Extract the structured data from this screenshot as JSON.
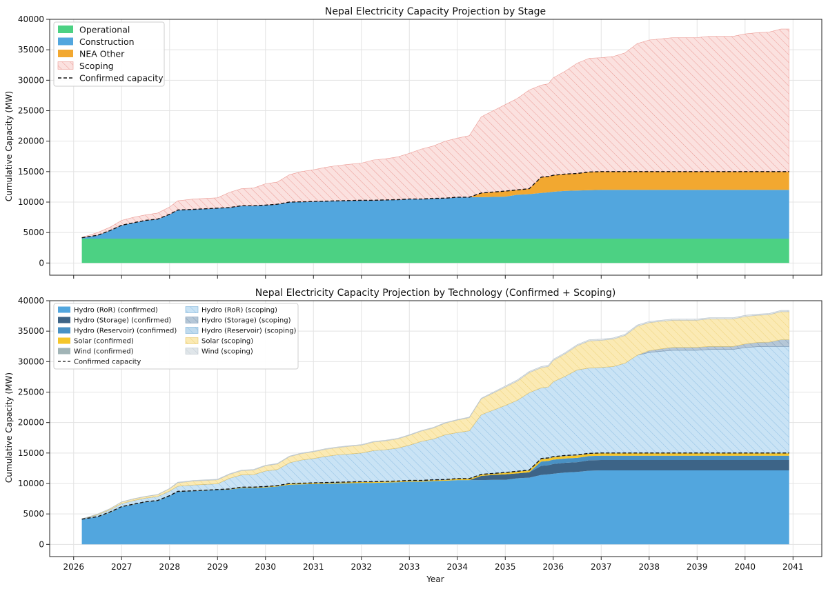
{
  "chart_data": [
    {
      "type": "area",
      "title": "Nepal Electricity Capacity Projection by Stage",
      "xlabel": "",
      "ylabel": "Cumulative Capacity (MW)",
      "xlim": [
        2025.5,
        2041.6
      ],
      "ylim": [
        -2000,
        40000
      ],
      "yticks": [
        0,
        5000,
        10000,
        15000,
        20000,
        25000,
        30000,
        35000,
        40000
      ],
      "grid": true,
      "legend_position": "top-left",
      "stacked": true,
      "x": [
        2026.17,
        2026.5,
        2026.75,
        2027.0,
        2027.25,
        2027.5,
        2027.75,
        2028.0,
        2028.17,
        2028.5,
        2028.75,
        2029.0,
        2029.25,
        2029.5,
        2029.75,
        2030.0,
        2030.25,
        2030.5,
        2030.75,
        2031.0,
        2031.25,
        2031.5,
        2031.75,
        2032.0,
        2032.25,
        2032.5,
        2032.75,
        2033.0,
        2033.25,
        2033.5,
        2033.75,
        2034.0,
        2034.25,
        2034.5,
        2034.75,
        2035.0,
        2035.25,
        2035.5,
        2035.75,
        2035.9,
        2036.0,
        2036.25,
        2036.5,
        2036.75,
        2037.0,
        2037.25,
        2037.5,
        2037.75,
        2038.0,
        2038.25,
        2038.5,
        2038.75,
        2039.0,
        2039.25,
        2039.5,
        2039.75,
        2040.0,
        2040.25,
        2040.5,
        2040.75,
        2040.92
      ],
      "series": [
        {
          "name": "Operational",
          "values": [
            4000,
            4000,
            4000,
            4000,
            4000,
            4000,
            4000,
            4000,
            4000,
            4000,
            4000,
            4000,
            4000,
            4000,
            4000,
            4000,
            4000,
            4000,
            4000,
            4000,
            4000,
            4000,
            4000,
            4000,
            4000,
            4000,
            4000,
            4000,
            4000,
            4000,
            4000,
            4000,
            4000,
            4000,
            4000,
            4000,
            4000,
            4000,
            4000,
            4000,
            4000,
            4000,
            4000,
            4000,
            4000,
            4000,
            4000,
            4000,
            4000,
            4000,
            4000,
            4000,
            4000,
            4000,
            4000,
            4000,
            4000,
            4000,
            4000,
            4000,
            4000
          ]
        },
        {
          "name": "Construction",
          "values": [
            150,
            550,
            1300,
            2200,
            2600,
            3000,
            3200,
            4000,
            4700,
            4800,
            4900,
            5000,
            5100,
            5400,
            5400,
            5500,
            5650,
            6000,
            6050,
            6100,
            6150,
            6200,
            6250,
            6300,
            6300,
            6350,
            6400,
            6500,
            6500,
            6600,
            6650,
            6800,
            6800,
            6800,
            6850,
            6900,
            7200,
            7300,
            7500,
            7600,
            7700,
            7850,
            7900,
            7950,
            8000,
            8000,
            8000,
            8000,
            8000,
            8000,
            8000,
            8000,
            8000,
            8000,
            8000,
            8000,
            8000,
            8000,
            8000,
            8000,
            8000
          ]
        },
        {
          "name": "NEA Other",
          "values": [
            0,
            0,
            0,
            0,
            0,
            0,
            0,
            0,
            0,
            0,
            0,
            0,
            0,
            0,
            0,
            0,
            0,
            0,
            0,
            0,
            0,
            0,
            0,
            0,
            0,
            0,
            0,
            0,
            0,
            0,
            0,
            0,
            0,
            700,
            800,
            900,
            800,
            900,
            2600,
            2600,
            2700,
            2750,
            2800,
            3000,
            3000,
            3000,
            3000,
            3000,
            3000,
            3000,
            3000,
            3000,
            3000,
            3000,
            3000,
            3000,
            3000,
            3000,
            3000,
            3000,
            3000
          ]
        },
        {
          "name": "Scoping",
          "values": [
            50,
            450,
            550,
            800,
            900,
            900,
            1000,
            1200,
            1500,
            1700,
            1700,
            1700,
            2500,
            2800,
            2900,
            3500,
            3650,
            4500,
            4950,
            5200,
            5550,
            5800,
            5950,
            6100,
            6600,
            6750,
            7000,
            7500,
            8200,
            8600,
            9350,
            9700,
            10100,
            12500,
            13350,
            14200,
            15000,
            16200,
            15100,
            15200,
            16000,
            16900,
            18100,
            18650,
            18700,
            18900,
            19500,
            21000,
            21600,
            21800,
            22000,
            22000,
            22000,
            22200,
            22200,
            22200,
            22600,
            22800,
            22900,
            23400,
            23400
          ]
        }
      ],
      "reference_line": {
        "name": "Confirmed capacity",
        "style": "dashed",
        "color": "#111111"
      },
      "colors": {
        "Operational": "#4cd183",
        "Construction": "#52a6de",
        "NEA Other": "#f2a830",
        "Scoping": "#fbe1df",
        "Scoping_hatch": "#eb9a94"
      }
    },
    {
      "type": "area",
      "title": "Nepal Electricity Capacity Projection by Technology (Confirmed + Scoping)",
      "xlabel": "Year",
      "ylabel": "Cumulative Capacity (MW)",
      "xlim": [
        2025.5,
        2041.6
      ],
      "ylim": [
        -2000,
        40000
      ],
      "yticks": [
        0,
        5000,
        10000,
        15000,
        20000,
        25000,
        30000,
        35000,
        40000
      ],
      "xticks": [
        "2026",
        "2027",
        "2028",
        "2029",
        "2030",
        "2031",
        "2032",
        "2033",
        "2034",
        "2035",
        "2036",
        "2037",
        "2038",
        "2039",
        "2040",
        "2041"
      ],
      "grid": true,
      "legend_position": "top-left",
      "stacked": true,
      "series": [
        {
          "name": "Hydro (RoR) (confirmed)",
          "values": [
            4100,
            4500,
            5200,
            6150,
            6550,
            6950,
            7150,
            7950,
            8650,
            8750,
            8850,
            8950,
            9000,
            9250,
            9250,
            9350,
            9500,
            9800,
            9850,
            9900,
            9950,
            10000,
            10050,
            10100,
            10100,
            10150,
            10200,
            10300,
            10300,
            10400,
            10450,
            10550,
            10550,
            10550,
            10600,
            10600,
            10850,
            10950,
            11400,
            11500,
            11600,
            11800,
            11900,
            12100,
            12150,
            12150,
            12150,
            12150,
            12150,
            12150,
            12150,
            12150,
            12150,
            12150,
            12150,
            12150,
            12150,
            12150,
            12150,
            12150,
            12150
          ]
        },
        {
          "name": "Hydro (Storage) (confirmed)",
          "values": [
            0,
            0,
            0,
            0,
            0,
            0,
            0,
            0,
            0,
            0,
            0,
            0,
            0,
            0,
            0,
            0,
            0,
            0,
            0,
            0,
            0,
            0,
            0,
            0,
            0,
            0,
            0,
            0,
            0,
            0,
            0,
            0,
            0,
            700,
            800,
            900,
            800,
            900,
            1500,
            1500,
            1600,
            1600,
            1600,
            1700,
            1700,
            1700,
            1700,
            1700,
            1700,
            1700,
            1700,
            1700,
            1700,
            1700,
            1700,
            1700,
            1700,
            1700,
            1700,
            1700,
            1700
          ]
        },
        {
          "name": "Hydro (Reservoir) (confirmed)",
          "values": [
            0,
            0,
            0,
            0,
            0,
            0,
            0,
            0,
            0,
            0,
            0,
            0,
            0,
            0,
            0,
            0,
            0,
            0,
            0,
            0,
            0,
            0,
            0,
            0,
            0,
            0,
            0,
            0,
            0,
            0,
            0,
            0,
            0,
            0,
            0,
            0,
            0,
            0,
            700,
            700,
            700,
            700,
            700,
            700,
            700,
            700,
            700,
            700,
            700,
            700,
            700,
            700,
            700,
            700,
            700,
            700,
            700,
            700,
            700,
            700,
            700
          ]
        },
        {
          "name": "Solar (confirmed)",
          "values": [
            0,
            0,
            50,
            50,
            50,
            50,
            50,
            50,
            50,
            50,
            50,
            50,
            50,
            100,
            100,
            100,
            100,
            150,
            150,
            150,
            150,
            150,
            150,
            150,
            150,
            150,
            150,
            150,
            150,
            150,
            150,
            200,
            200,
            200,
            200,
            250,
            300,
            300,
            400,
            400,
            400,
            400,
            400,
            400,
            400,
            400,
            400,
            400,
            400,
            400,
            400,
            400,
            400,
            400,
            400,
            400,
            400,
            400,
            400,
            400,
            400
          ]
        },
        {
          "name": "Wind (confirmed)",
          "values": [
            50,
            50,
            50,
            0,
            0,
            0,
            0,
            0,
            0,
            0,
            0,
            0,
            50,
            50,
            50,
            50,
            50,
            50,
            50,
            50,
            50,
            50,
            50,
            50,
            50,
            50,
            50,
            50,
            50,
            50,
            50,
            50,
            50,
            50,
            50,
            50,
            50,
            50,
            100,
            100,
            100,
            100,
            100,
            50,
            50,
            50,
            50,
            50,
            50,
            50,
            50,
            50,
            50,
            50,
            50,
            50,
            50,
            50,
            50,
            50,
            50
          ]
        },
        {
          "name": "Hydro (RoR) (scoping)",
          "values": [
            0,
            300,
            350,
            500,
            600,
            600,
            650,
            750,
            850,
            950,
            950,
            950,
            1750,
            2000,
            2050,
            2550,
            2650,
            3400,
            3800,
            4000,
            4300,
            4500,
            4600,
            4700,
            5100,
            5200,
            5400,
            5800,
            6400,
            6700,
            7350,
            7550,
            7850,
            9800,
            10400,
            11000,
            11650,
            12700,
            11600,
            11650,
            12300,
            13000,
            13950,
            14000,
            14050,
            14200,
            14750,
            16050,
            16500,
            16700,
            16850,
            16850,
            16850,
            17000,
            17000,
            17000,
            17300,
            17450,
            17500,
            17500,
            17500
          ]
        },
        {
          "name": "Hydro (Storage) (scoping)",
          "values": [
            0,
            0,
            0,
            0,
            0,
            0,
            0,
            0,
            0,
            0,
            0,
            0,
            0,
            0,
            0,
            0,
            0,
            0,
            0,
            0,
            0,
            0,
            0,
            0,
            0,
            0,
            0,
            0,
            0,
            0,
            0,
            0,
            0,
            0,
            0,
            0,
            0,
            0,
            0,
            0,
            0,
            0,
            0,
            0,
            0,
            0,
            0,
            0,
            300,
            400,
            500,
            500,
            500,
            500,
            500,
            500,
            600,
            700,
            700,
            1100,
            1100
          ]
        },
        {
          "name": "Hydro (Reservoir) (scoping)",
          "values": [
            0,
            0,
            0,
            0,
            0,
            0,
            0,
            0,
            0,
            0,
            0,
            0,
            0,
            0,
            0,
            0,
            0,
            0,
            0,
            0,
            0,
            0,
            0,
            0,
            0,
            0,
            0,
            0,
            0,
            0,
            0,
            0,
            0,
            0,
            0,
            0,
            0,
            0,
            0,
            0,
            0,
            0,
            0,
            0,
            0,
            0,
            0,
            0,
            0,
            0,
            0,
            0,
            0,
            0,
            0,
            0,
            0,
            0,
            0,
            0,
            0
          ]
        },
        {
          "name": "Solar (scoping)",
          "values": [
            0,
            100,
            150,
            250,
            250,
            250,
            300,
            400,
            550,
            650,
            650,
            650,
            650,
            700,
            750,
            850,
            900,
            1000,
            1050,
            1100,
            1150,
            1200,
            1250,
            1300,
            1400,
            1450,
            1500,
            1600,
            1700,
            1800,
            1900,
            2050,
            2150,
            2600,
            2800,
            3000,
            3150,
            3300,
            3300,
            3350,
            3500,
            3700,
            3950,
            4450,
            4450,
            4500,
            4550,
            4750,
            4600,
            4500,
            4450,
            4450,
            4450,
            4500,
            4500,
            4500,
            4500,
            4450,
            4500,
            4600,
            4600
          ]
        },
        {
          "name": "Wind (scoping)",
          "values": [
            50,
            50,
            50,
            50,
            50,
            50,
            50,
            50,
            100,
            100,
            100,
            100,
            100,
            100,
            100,
            100,
            100,
            100,
            100,
            100,
            100,
            100,
            100,
            100,
            100,
            100,
            100,
            100,
            100,
            100,
            100,
            100,
            100,
            100,
            150,
            200,
            200,
            200,
            200,
            200,
            200,
            200,
            200,
            200,
            200,
            200,
            200,
            200,
            200,
            200,
            200,
            200,
            200,
            200,
            200,
            200,
            200,
            200,
            200,
            200,
            200
          ]
        }
      ],
      "reference_line": {
        "name": "Confirmed capacity",
        "style": "dashed",
        "color": "#111111"
      },
      "colors": {
        "Hydro (RoR) (confirmed)": "#52a6de",
        "Hydro (Storage) (confirmed)": "#3d6487",
        "Hydro (Reservoir) (confirmed)": "#4991c4",
        "Solar (confirmed)": "#f5c62a",
        "Wind (confirmed)": "#a1b4b6",
        "Hydro (RoR) (scoping)": "#c9e3f5",
        "Hydro (Storage) (scoping)": "#b5c7d7",
        "Hydro (Reservoir) (scoping)": "#c0dbee",
        "Solar (scoping)": "#fbeab4",
        "Wind (scoping)": "#e0e6ea"
      }
    }
  ]
}
